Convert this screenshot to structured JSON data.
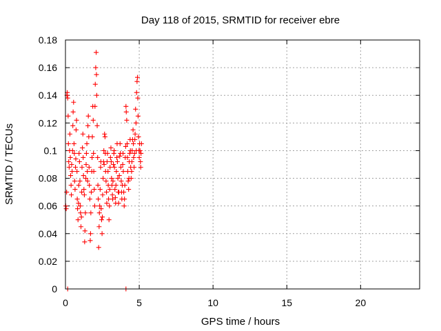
{
  "chart_data": {
    "type": "scatter",
    "title": "Day 118 of 2015, SRMTID for receiver ebre",
    "xlabel": "GPS time / hours",
    "ylabel": "SRMTID / TECUs",
    "xlim": [
      0,
      24
    ],
    "ylim": [
      0,
      0.18
    ],
    "xticks": [
      0,
      5,
      10,
      15,
      20
    ],
    "xtick_labels": [
      "0",
      "5",
      "10",
      "15",
      "20"
    ],
    "yticks": [
      0,
      0.02,
      0.04,
      0.06,
      0.08,
      0.1,
      0.12,
      0.14,
      0.16,
      0.18
    ],
    "ytick_labels": [
      "0",
      "0.02",
      "0.04",
      "0.06",
      "0.08",
      "0.1",
      "0.12",
      "0.14",
      "0.16",
      "0.18"
    ],
    "grid": true,
    "marker": "+",
    "color": "#ff0000",
    "series": [
      {
        "name": "SRMTID",
        "points": [
          [
            0.02,
            0.06
          ],
          [
            0.05,
            0.058
          ],
          [
            0.08,
            0.07
          ],
          [
            0.1,
            0.14
          ],
          [
            0.12,
            0.142
          ],
          [
            0.15,
            0.138
          ],
          [
            0.18,
            0.125
          ],
          [
            0.2,
            0.105
          ],
          [
            0.22,
            0.092
          ],
          [
            0.25,
            0.088
          ],
          [
            0.28,
            0.1
          ],
          [
            0.3,
            0.112
          ],
          [
            0.33,
            0.095
          ],
          [
            0.35,
            0.082
          ],
          [
            0.38,
            0.075
          ],
          [
            0.4,
            0.068
          ],
          [
            0.42,
            0.09
          ],
          [
            0.45,
            0.085
          ],
          [
            0.48,
            0.1
          ],
          [
            0.5,
            0.118
          ],
          [
            0.52,
            0.128
          ],
          [
            0.55,
            0.135
          ],
          [
            0.58,
            0.105
          ],
          [
            0.6,
            0.098
          ],
          [
            0.62,
            0.078
          ],
          [
            0.65,
            0.072
          ],
          [
            0.68,
            0.088
          ],
          [
            0.7,
            0.094
          ],
          [
            0.72,
            0.115
          ],
          [
            0.75,
            0.122
          ],
          [
            0.78,
            0.085
          ],
          [
            0.8,
            0.065
          ],
          [
            0.82,
            0.058
          ],
          [
            0.85,
            0.05
          ],
          [
            0.88,
            0.062
          ],
          [
            0.9,
            0.075
          ],
          [
            0.92,
            0.098
          ],
          [
            0.95,
            0.092
          ],
          [
            0.98,
            0.078
          ],
          [
            1.0,
            0.06
          ],
          [
            1.02,
            0.055
          ],
          [
            1.05,
            0.045
          ],
          [
            1.08,
            0.052
          ],
          [
            1.1,
            0.07
          ],
          [
            1.12,
            0.088
          ],
          [
            1.15,
            0.102
          ],
          [
            1.18,
            0.112
          ],
          [
            1.2,
            0.095
          ],
          [
            1.22,
            0.082
          ],
          [
            1.25,
            0.072
          ],
          [
            1.28,
            0.068
          ],
          [
            1.3,
            0.034
          ],
          [
            1.32,
            0.042
          ],
          [
            1.35,
            0.055
          ],
          [
            1.38,
            0.08
          ],
          [
            1.4,
            0.09
          ],
          [
            1.42,
            0.098
          ],
          [
            1.45,
            0.105
          ],
          [
            1.48,
            0.085
          ],
          [
            1.5,
            0.078
          ],
          [
            1.52,
            0.118
          ],
          [
            1.55,
            0.125
          ],
          [
            1.58,
            0.11
          ],
          [
            1.6,
            0.088
          ],
          [
            1.62,
            0.075
          ],
          [
            1.65,
            0.065
          ],
          [
            1.68,
            0.035
          ],
          [
            1.7,
            0.04
          ],
          [
            1.72,
            0.055
          ],
          [
            1.75,
            0.07
          ],
          [
            1.78,
            0.085
          ],
          [
            1.8,
            0.095
          ],
          [
            1.82,
            0.11
          ],
          [
            1.85,
            0.132
          ],
          [
            1.88,
            0.122
          ],
          [
            1.9,
            0.098
          ],
          [
            1.92,
            0.085
          ],
          [
            1.95,
            0.072
          ],
          [
            1.98,
            0.06
          ],
          [
            2.0,
            0.132
          ],
          [
            2.02,
            0.148
          ],
          [
            2.05,
            0.16
          ],
          [
            2.08,
            0.171
          ],
          [
            2.1,
            0.155
          ],
          [
            2.12,
            0.14
          ],
          [
            2.15,
            0.118
          ],
          [
            2.18,
            0.095
          ],
          [
            2.2,
            0.075
          ],
          [
            2.22,
            0.065
          ],
          [
            2.25,
            0.03
          ],
          [
            2.28,
            0.045
          ],
          [
            2.3,
            0.055
          ],
          [
            2.32,
            0.06
          ],
          [
            2.35,
            0.072
          ],
          [
            2.38,
            0.088
          ],
          [
            2.4,
            0.092
          ],
          [
            2.42,
            0.058
          ],
          [
            2.45,
            0.05
          ],
          [
            2.48,
            0.04
          ],
          [
            2.5,
            0.052
          ],
          [
            2.52,
            0.068
          ],
          [
            2.55,
            0.08
          ],
          [
            2.58,
            0.092
          ],
          [
            2.6,
            0.1
          ],
          [
            2.62,
            0.09
          ],
          [
            2.65,
            0.112
          ],
          [
            2.68,
            0.11
          ],
          [
            2.7,
            0.098
          ],
          [
            2.72,
            0.085
          ],
          [
            2.75,
            0.078
          ],
          [
            2.78,
            0.07
          ],
          [
            2.8,
            0.062
          ],
          [
            2.82,
            0.092
          ],
          [
            2.85,
            0.098
          ],
          [
            2.88,
            0.085
          ],
          [
            2.9,
            0.075
          ],
          [
            2.92,
            0.065
          ],
          [
            2.95,
            0.05
          ],
          [
            2.98,
            0.06
          ],
          [
            3.0,
            0.072
          ],
          [
            3.02,
            0.088
          ],
          [
            3.05,
            0.095
          ],
          [
            3.08,
            0.102
          ],
          [
            3.1,
            0.092
          ],
          [
            3.12,
            0.08
          ],
          [
            3.15,
            0.075
          ],
          [
            3.18,
            0.068
          ],
          [
            3.2,
            0.065
          ],
          [
            3.22,
            0.078
          ],
          [
            3.25,
            0.09
          ],
          [
            3.28,
            0.098
          ],
          [
            3.3,
            0.1
          ],
          [
            3.32,
            0.088
          ],
          [
            3.35,
            0.072
          ],
          [
            3.38,
            0.066
          ],
          [
            3.4,
            0.062
          ],
          [
            3.42,
            0.075
          ],
          [
            3.45,
            0.085
          ],
          [
            3.48,
            0.095
          ],
          [
            3.5,
            0.105
          ],
          [
            3.52,
            0.092
          ],
          [
            3.55,
            0.08
          ],
          [
            3.58,
            0.07
          ],
          [
            3.6,
            0.062
          ],
          [
            3.62,
            0.07
          ],
          [
            3.65,
            0.082
          ],
          [
            3.68,
            0.096
          ],
          [
            3.7,
            0.105
          ],
          [
            3.72,
            0.098
          ],
          [
            3.75,
            0.088
          ],
          [
            3.78,
            0.078
          ],
          [
            3.8,
            0.07
          ],
          [
            3.82,
            0.065
          ],
          [
            3.85,
            0.075
          ],
          [
            3.88,
            0.09
          ],
          [
            3.9,
            0.098
          ],
          [
            3.92,
            0.085
          ],
          [
            3.95,
            0.07
          ],
          [
            3.98,
            0.06
          ],
          [
            4.0,
            0.065
          ],
          [
            4.02,
            0.075
          ],
          [
            4.05,
            0.095
          ],
          [
            4.08,
            0.103
          ],
          [
            4.1,
            0.132
          ],
          [
            4.12,
            0.128
          ],
          [
            4.15,
            0.122
          ],
          [
            4.18,
            0.105
          ],
          [
            4.2,
            0.095
          ],
          [
            4.22,
            0.085
          ],
          [
            4.25,
            0.078
          ],
          [
            4.28,
            0.072
          ],
          [
            4.3,
            0.08
          ],
          [
            4.32,
            0.092
          ],
          [
            4.35,
            0.098
          ],
          [
            4.38,
            0.108
          ],
          [
            4.4,
            0.1
          ],
          [
            4.42,
            0.088
          ],
          [
            4.45,
            0.08
          ],
          [
            4.48,
            0.085
          ],
          [
            4.5,
            0.092
          ],
          [
            4.52,
            0.1
          ],
          [
            4.55,
            0.108
          ],
          [
            4.58,
            0.115
          ],
          [
            4.6,
            0.105
          ],
          [
            4.62,
            0.095
          ],
          [
            4.65,
            0.088
          ],
          [
            4.68,
            0.098
          ],
          [
            4.7,
            0.108
          ],
          [
            4.72,
            0.112
          ],
          [
            4.75,
            0.13
          ],
          [
            4.78,
            0.12
          ],
          [
            4.8,
            0.1
          ],
          [
            4.82,
            0.142
          ],
          [
            4.85,
            0.15
          ],
          [
            4.88,
            0.153
          ],
          [
            4.9,
            0.138
          ],
          [
            4.92,
            0.125
          ],
          [
            4.95,
            0.11
          ],
          [
            4.98,
            0.1
          ],
          [
            5.0,
            0.095
          ],
          [
            5.02,
            0.105
          ],
          [
            5.05,
            0.1
          ],
          [
            5.08,
            0.092
          ],
          [
            5.1,
            0.088
          ],
          [
            5.12,
            0.098
          ],
          [
            5.15,
            0.105
          ],
          [
            0.15,
            0.0
          ],
          [
            4.1,
            0.0
          ]
        ]
      }
    ]
  }
}
